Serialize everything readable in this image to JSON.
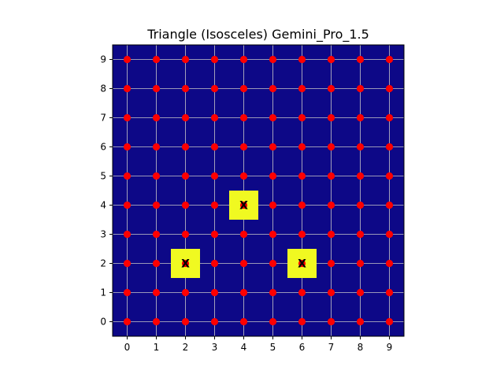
{
  "chart_data": {
    "type": "heatmap",
    "title": "Triangle (Isosceles) Gemini_Pro_1.5",
    "xlabel": "",
    "ylabel": "",
    "xlim": [
      -0.5,
      9.5
    ],
    "ylim": [
      -0.5,
      9.5
    ],
    "x_ticks": [
      "0",
      "1",
      "2",
      "3",
      "4",
      "5",
      "6",
      "7",
      "8",
      "9"
    ],
    "y_ticks": [
      "0",
      "1",
      "2",
      "3",
      "4",
      "5",
      "6",
      "7",
      "8",
      "9"
    ],
    "grid": true,
    "background_color": "#0d0887",
    "grid_color": "#c8c8c8",
    "point_color": "#ff0000",
    "highlight_color": "#f0f921",
    "grid_points": {
      "x_range": [
        0,
        9
      ],
      "y_range": [
        0,
        9
      ]
    },
    "highlighted_cells": [
      {
        "x": 4,
        "y": 4,
        "label": "X"
      },
      {
        "x": 2,
        "y": 2,
        "label": "X"
      },
      {
        "x": 6,
        "y": 2,
        "label": "X"
      }
    ]
  }
}
